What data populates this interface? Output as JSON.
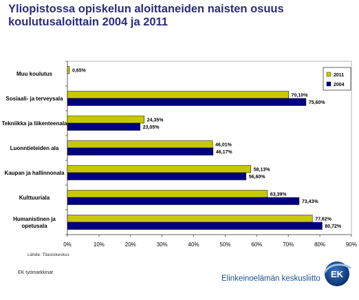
{
  "header": {
    "title_line1": "Yliopistossa opiskelun aloittaneiden naisten osuus",
    "title_line2": "koulutusaloittain  2004 ja 2011"
  },
  "footer": {
    "source": "Lähde: Tilastokeskus",
    "left_note": "EK työmarkkinat",
    "brand": "Elinkeinoelämän keskusliitto",
    "logo_text": "EK"
  },
  "colors": {
    "series_2011": "#c8c800",
    "series_2004": "#000080",
    "title": "#2b2b7f",
    "brand": "#1f4f8f"
  },
  "chart_data": {
    "type": "bar",
    "orientation": "horizontal",
    "title": "",
    "xlabel": "",
    "ylabel": "",
    "xlim": [
      0,
      90
    ],
    "x_ticks": [
      "0%",
      "10%",
      "20%",
      "30%",
      "40%",
      "50%",
      "60%",
      "70%",
      "80%",
      "90%"
    ],
    "grid": false,
    "legend_position": "top-right",
    "categories": [
      [
        "Muu koulutus"
      ],
      [
        "Sosiaali- ja terveysala"
      ],
      [
        "Tekniikka ja liikenteenala"
      ],
      [
        "Luonntieteiden ala"
      ],
      [
        "Kaupan ja hallinnonala"
      ],
      [
        "Kulttuuriala"
      ],
      [
        "Humanistinen ja",
        "opetusala"
      ]
    ],
    "series": [
      {
        "name": "2011",
        "values": [
          0.65,
          70.1,
          24.35,
          46.01,
          58.13,
          63.39,
          77.62
        ],
        "labels": [
          "0,65%",
          "70,10%",
          "24,35%",
          "46,01%",
          "58,13%",
          "63,39%",
          "77,62%"
        ]
      },
      {
        "name": "2004",
        "values": [
          null,
          75.6,
          23.05,
          46.17,
          56.6,
          73.43,
          80.72
        ],
        "labels": [
          "",
          "75,60%",
          "23,05%",
          "46,17%",
          "56,60%",
          "73,43%",
          "80,72%"
        ]
      }
    ]
  }
}
